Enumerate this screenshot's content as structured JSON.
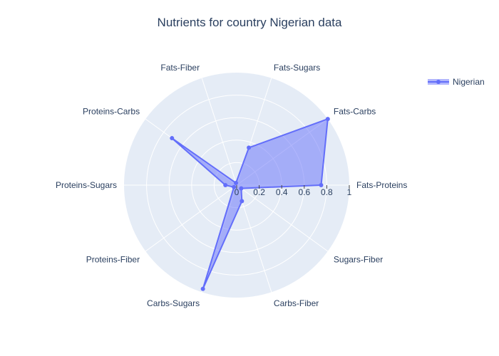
{
  "chart_data": {
    "type": "radar",
    "title": "Nutrients for country Nigerian data",
    "categories": [
      "Fats-Proteins",
      "Fats-Carbs",
      "Fats-Sugars",
      "Fats-Fiber",
      "Proteins-Carbs",
      "Proteins-Sugars",
      "Proteins-Fiber",
      "Carbs-Sugars",
      "Carbs-Fiber",
      "Sugars-Fiber"
    ],
    "series": [
      {
        "name": "Nigerian",
        "values": [
          0.75,
          1.0,
          0.35,
          0.02,
          0.71,
          0.1,
          0.03,
          0.97,
          0.15,
          0.05
        ]
      }
    ],
    "radial_range": [
      0,
      1
    ],
    "radial_ticks": [
      "0",
      "0.2",
      "0.4",
      "0.6",
      "0.8",
      "1"
    ],
    "tick_values": [
      0,
      0.2,
      0.4,
      0.6,
      0.8,
      1.0
    ],
    "legend_position": "top-right",
    "colors": {
      "series": "#636efa",
      "polar_bg": "#e5ecf6",
      "grid": "#ffffff",
      "text": "#2a3f5f"
    }
  }
}
